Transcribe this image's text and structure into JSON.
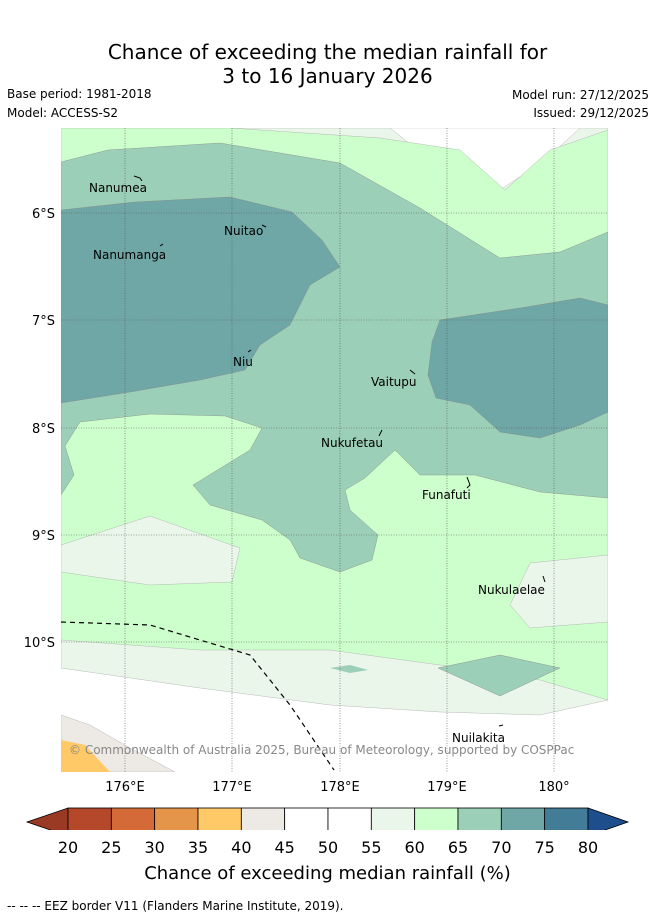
{
  "title_line1": "Chance of exceeding the median rainfall for",
  "title_line2": "3 to 16 January 2026",
  "base_period": "Base period: 1981-2018",
  "model": "Model: ACCESS-S2",
  "model_run": "Model run: 27/12/2025",
  "issued": "Issued: 29/12/2025",
  "copyright": "© Commonwealth of Australia 2025, Bureau of Meteorology, supported by COSPPac",
  "lat_labels": [
    "6°S",
    "7°S",
    "8°S",
    "9°S",
    "10°S"
  ],
  "lon_labels": [
    "176°E",
    "177°E",
    "178°E",
    "179°E",
    "180°"
  ],
  "places": [
    {
      "name": "Nanumea",
      "lon": 176.05,
      "lat": -5.7
    },
    {
      "name": "Nuitao",
      "lon": 177.3,
      "lat": -6.1
    },
    {
      "name": "Nanumanga",
      "lon": 176.3,
      "lat": -6.3
    },
    {
      "name": "Niu",
      "lon": 177.15,
      "lat": -7.3
    },
    {
      "name": "Vaitupu",
      "lon": 178.7,
      "lat": -7.5
    },
    {
      "name": "Nukufetau",
      "lon": 178.35,
      "lat": -8.05
    },
    {
      "name": "Funafuti",
      "lon": 179.2,
      "lat": -8.5
    },
    {
      "name": "Nukulaelae",
      "lon": 179.85,
      "lat": -9.4
    },
    {
      "name": "Nuilakita",
      "lon": 179.5,
      "lat": -10.8
    }
  ],
  "colorbar": {
    "ticks": [
      "20",
      "25",
      "30",
      "35",
      "40",
      "45",
      "50",
      "55",
      "60",
      "65",
      "70",
      "75",
      "80"
    ],
    "colors": [
      "#b5482a",
      "#d46a38",
      "#e59549",
      "#fec966",
      "#ede9e5",
      "#ffffff",
      "#ffffff",
      "#eaf6ea",
      "#ccffcc",
      "#9ccfb7",
      "#6fa6a6",
      "#427c96"
    ],
    "under_color": "#9a3a24",
    "over_color": "#1e4e8c",
    "label": "Chance of exceeding median rainfall (%)"
  },
  "eez_note": "-- -- -- EEZ border V11 (Flanders Marine Institute, 2019)."
}
